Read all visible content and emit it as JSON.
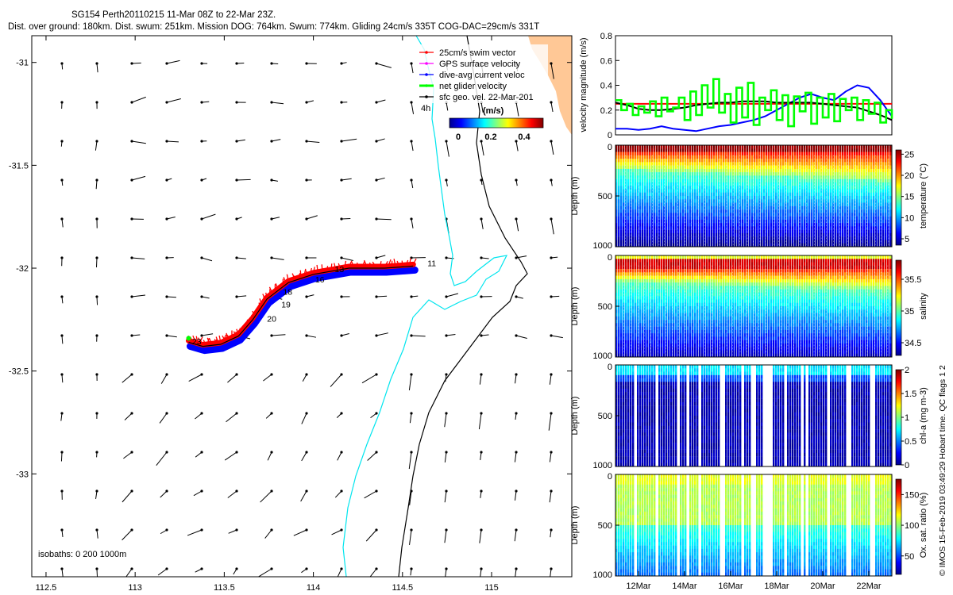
{
  "title": {
    "line1": "SG154 Perth20110215 11-Mar 08Z to 22-Mar 23Z.",
    "line2": "Dist. over ground: 180km. Dist. swum: 251km. Mission DOG: 764km. Swum: 774km. Gliding 24cm/s 335T COG-DAC=29cm/s 331T"
  },
  "legend": {
    "items": [
      {
        "label": "25cm/s swim vector",
        "color": "#ff0000"
      },
      {
        "label": "GPS surface velocity",
        "color": "#ff00ff"
      },
      {
        "label": "dive-avg current veloc",
        "color": "#0000ff"
      },
      {
        "label": "net glider velocity",
        "color": "#00ff00"
      },
      {
        "label": "sfc geo. vel. 22-Mar-201",
        "color": "#000000"
      }
    ],
    "marker_4h": "4h",
    "colorbar_label": "(m/s)",
    "colorbar_ticks": [
      "0",
      "0.2",
      "0.4"
    ]
  },
  "isobaths_label": "isobaths: 0   200   1000m",
  "credit": "© IMOS 15-Feb-2019 03:49:29 Hobart time. QC flags 1  2",
  "colors": {
    "land": "#ffc896",
    "isobath_200": "#00e5ee",
    "isobath_1000": "#000000",
    "track_red": "#ff0000",
    "track_blue": "#0000ff",
    "track_green": "#00ff00"
  },
  "chart_data": [
    {
      "type": "map",
      "x_ticks": [
        "112.5",
        "113",
        "113.5",
        "114",
        "114.5",
        "115"
      ],
      "y_ticks": [
        "-31",
        "-31.5",
        "-32",
        "-32.5",
        "-33"
      ],
      "xlim": [
        112.42,
        115.45
      ],
      "ylim": [
        -33.5,
        -30.87
      ],
      "track_day_labels": [
        {
          "label": "11",
          "lon": 114.64,
          "lat": -31.99
        },
        {
          "label": "13",
          "lon": 114.12,
          "lat": -32.02
        },
        {
          "label": "16",
          "lon": 114.01,
          "lat": -32.07
        },
        {
          "label": "18",
          "lon": 113.83,
          "lat": -32.13
        },
        {
          "label": "19",
          "lon": 113.82,
          "lat": -32.19
        },
        {
          "label": "20",
          "lon": 113.74,
          "lat": -32.26
        },
        {
          "label": "23",
          "lon": 113.32,
          "lat": -32.37
        }
      ],
      "track": [
        [
          114.56,
          -31.99
        ],
        [
          114.4,
          -32.0
        ],
        [
          114.2,
          -32.0
        ],
        [
          114.0,
          -32.03
        ],
        [
          113.86,
          -32.07
        ],
        [
          113.74,
          -32.15
        ],
        [
          113.66,
          -32.25
        ],
        [
          113.58,
          -32.33
        ],
        [
          113.48,
          -32.37
        ],
        [
          113.38,
          -32.38
        ],
        [
          113.3,
          -32.36
        ]
      ]
    },
    {
      "type": "line",
      "ylabel": "velocity magnitude (m/s)",
      "ylim": [
        0,
        0.8
      ],
      "y_ticks": [
        "0",
        "0.2",
        "0.4",
        "0.6",
        "0.8"
      ],
      "series": [
        {
          "color": "#ff0000",
          "x": [
            11.0,
            23.0
          ],
          "y": [
            0.25,
            0.25
          ]
        },
        {
          "color": "#0000ff",
          "x": [
            11.0,
            11.5,
            12.0,
            12.5,
            13.0,
            13.5,
            14.0,
            14.5,
            15.0,
            15.5,
            16.0,
            16.5,
            17.0,
            17.5,
            18.0,
            18.5,
            19.0,
            19.5,
            20.0,
            20.5,
            21.0,
            21.5,
            22.0,
            22.5,
            23.0
          ],
          "y": [
            0.05,
            0.05,
            0.04,
            0.05,
            0.07,
            0.05,
            0.04,
            0.03,
            0.05,
            0.07,
            0.08,
            0.1,
            0.12,
            0.15,
            0.2,
            0.25,
            0.3,
            0.33,
            0.3,
            0.28,
            0.35,
            0.4,
            0.38,
            0.28,
            0.15
          ]
        },
        {
          "color": "#000000",
          "x": [
            11.0,
            11.5,
            12.0,
            12.5,
            13.0,
            13.5,
            14.0,
            14.5,
            15.0,
            15.5,
            16.0,
            16.5,
            17.0,
            17.5,
            18.0,
            18.5,
            19.0,
            19.5,
            20.0,
            20.5,
            21.0,
            21.5,
            22.0,
            22.5,
            23.0
          ],
          "y": [
            0.26,
            0.24,
            0.21,
            0.2,
            0.2,
            0.21,
            0.22,
            0.24,
            0.25,
            0.26,
            0.26,
            0.27,
            0.27,
            0.27,
            0.26,
            0.26,
            0.26,
            0.26,
            0.25,
            0.24,
            0.23,
            0.22,
            0.19,
            0.16,
            0.12
          ]
        },
        {
          "color": "#00ff00",
          "x": [
            11.0,
            11.25,
            11.5,
            11.75,
            12.0,
            12.25,
            12.5,
            12.75,
            13.0,
            13.25,
            13.5,
            13.75,
            14.0,
            14.25,
            14.5,
            14.75,
            15.0,
            15.25,
            15.5,
            15.75,
            16.0,
            16.25,
            16.5,
            16.75,
            17.0,
            17.25,
            17.5,
            17.75,
            18.0,
            18.25,
            18.5,
            18.75,
            19.0,
            19.25,
            19.5,
            19.75,
            20.0,
            20.25,
            20.5,
            20.75,
            21.0,
            21.25,
            21.5,
            21.75,
            22.0,
            22.25,
            22.5,
            22.75,
            23.0
          ],
          "y": [
            0.28,
            0.2,
            0.25,
            0.16,
            0.23,
            0.18,
            0.27,
            0.15,
            0.3,
            0.19,
            0.22,
            0.3,
            0.12,
            0.35,
            0.16,
            0.4,
            0.22,
            0.45,
            0.18,
            0.33,
            0.1,
            0.38,
            0.14,
            0.42,
            0.08,
            0.3,
            0.2,
            0.36,
            0.12,
            0.32,
            0.07,
            0.31,
            0.19,
            0.34,
            0.09,
            0.3,
            0.14,
            0.33,
            0.11,
            0.29,
            0.2,
            0.3,
            0.12,
            0.28,
            0.17,
            0.26,
            0.1,
            0.2,
            0.13
          ]
        }
      ]
    },
    {
      "type": "heatmap",
      "variable": "temperature",
      "ylabel": "Depth (m)",
      "colorbar_label": "temperature (°C)",
      "clim": [
        3.5,
        26
      ],
      "colorbar_ticks": [
        "5",
        "10",
        "15",
        "20",
        "25"
      ],
      "y_ticks": [
        "0",
        "500",
        "1000"
      ],
      "ylim": [
        0,
        1000
      ]
    },
    {
      "type": "heatmap",
      "variable": "salinity",
      "ylabel": "Depth (m)",
      "colorbar_label": "salinity",
      "clim": [
        34.3,
        35.8
      ],
      "colorbar_ticks": [
        "34.5",
        "35",
        "35.5"
      ],
      "y_ticks": [
        "0",
        "500",
        "1000"
      ],
      "ylim": [
        0,
        1000
      ]
    },
    {
      "type": "heatmap",
      "variable": "chl-a",
      "ylabel": "Depth (m)",
      "colorbar_label": "chl-a (mg m-3)",
      "clim": [
        0,
        2
      ],
      "colorbar_ticks": [
        "0",
        "0.5",
        "1",
        "1.5",
        "2"
      ],
      "y_ticks": [
        "0",
        "500",
        "1000"
      ],
      "ylim": [
        0,
        1000
      ]
    },
    {
      "type": "heatmap",
      "variable": "oxygen",
      "ylabel": "Depth (m)",
      "colorbar_label": "Ox. sat. ratio (%)",
      "clim": [
        20,
        175
      ],
      "colorbar_ticks": [
        "50",
        "100",
        "150"
      ],
      "y_ticks": [
        "0",
        "500",
        "1000"
      ],
      "ylim": [
        0,
        1000
      ],
      "x_ticks": [
        "12Mar",
        "14Mar",
        "16Mar",
        "18Mar",
        "20Mar",
        "22Mar"
      ]
    }
  ]
}
